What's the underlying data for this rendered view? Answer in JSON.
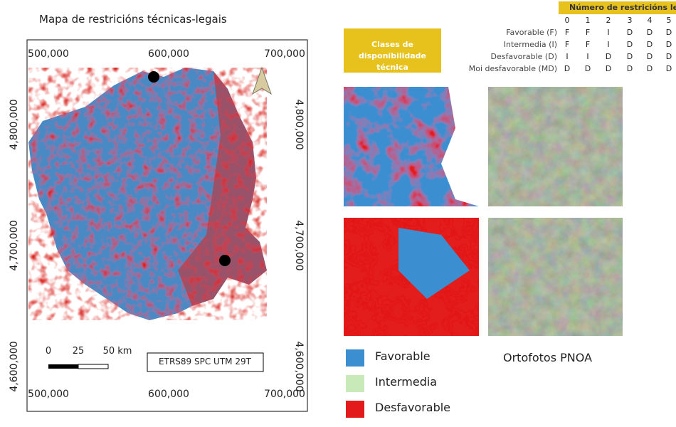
{
  "map": {
    "title": "Mapa de restricións técnicas-legais",
    "x_labels_top": [
      "500,000",
      "600,000",
      "700,000"
    ],
    "x_labels_bottom": [
      "500,000",
      "600,000",
      "700,000"
    ],
    "y_labels_left": [
      "4,800,000",
      "4,700,000",
      "4,600,000"
    ],
    "y_labels_right": [
      "4,800,000",
      "4,700,000",
      "4,600,000"
    ],
    "scale_labels": [
      "0",
      "25",
      "50 km"
    ],
    "crs": "ETRS89 SPC UTM 29T"
  },
  "table": {
    "header": "Número de restricións leg",
    "columns": [
      "0",
      "1",
      "2",
      "3",
      "4",
      "5"
    ],
    "row_header": "Clases de disponibilidade técnica",
    "rows": [
      {
        "label": "Favorable (F)",
        "cells": [
          "F",
          "F",
          "I",
          "D",
          "D",
          "D"
        ]
      },
      {
        "label": "Intermedia (I)",
        "cells": [
          "F",
          "F",
          "I",
          "D",
          "D",
          "D"
        ]
      },
      {
        "label": "Desfavorable (D)",
        "cells": [
          "I",
          "I",
          "D",
          "D",
          "D",
          "D"
        ]
      },
      {
        "label": "Moi desfavorable (MD)",
        "cells": [
          "D",
          "D",
          "D",
          "D",
          "D",
          "D"
        ]
      }
    ]
  },
  "legend": [
    "Favorable",
    "Intermedia",
    "Desfavorable"
  ],
  "photos_label": "Ortofotos PNOA"
}
